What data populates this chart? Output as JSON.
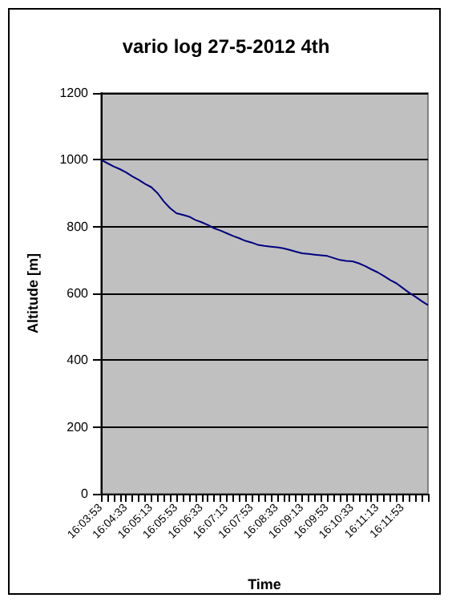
{
  "chart_data": {
    "type": "line",
    "title": "vario log 27-5-2012 4th",
    "xlabel": "Time",
    "ylabel": "Altitude [m]",
    "categories": [
      "16:03:53",
      null,
      null,
      null,
      "16:04:33",
      null,
      null,
      null,
      "16:05:13",
      null,
      null,
      null,
      "16:05:53",
      null,
      null,
      null,
      "16:06:33",
      null,
      null,
      null,
      "16:07:13",
      null,
      null,
      null,
      "16:07:53",
      null,
      null,
      null,
      "16:08:33",
      null,
      null,
      null,
      "16:09:13",
      null,
      null,
      null,
      "16:09:53",
      null,
      null,
      null,
      "16:10:33",
      null,
      null,
      null,
      "16:11:13",
      null,
      null,
      null,
      "16:11:53",
      null,
      null,
      null,
      null
    ],
    "series": [
      {
        "color": "#000080",
        "values": [
          1000,
          990,
          980,
          972,
          962,
          950,
          940,
          928,
          918,
          900,
          875,
          855,
          840,
          835,
          830,
          820,
          813,
          805,
          795,
          788,
          780,
          772,
          765,
          757,
          752,
          745,
          742,
          740,
          738,
          735,
          730,
          725,
          720,
          718,
          716,
          714,
          712,
          706,
          700,
          697,
          696,
          690,
          682,
          672,
          663,
          652,
          640,
          630,
          616,
          602,
          590,
          577,
          565
        ]
      }
    ],
    "ylim": [
      0,
      1200
    ],
    "yticks": [
      0,
      200,
      400,
      600,
      800,
      1000,
      1200
    ],
    "grid": "y",
    "marker": "none",
    "line_style": "solid"
  }
}
